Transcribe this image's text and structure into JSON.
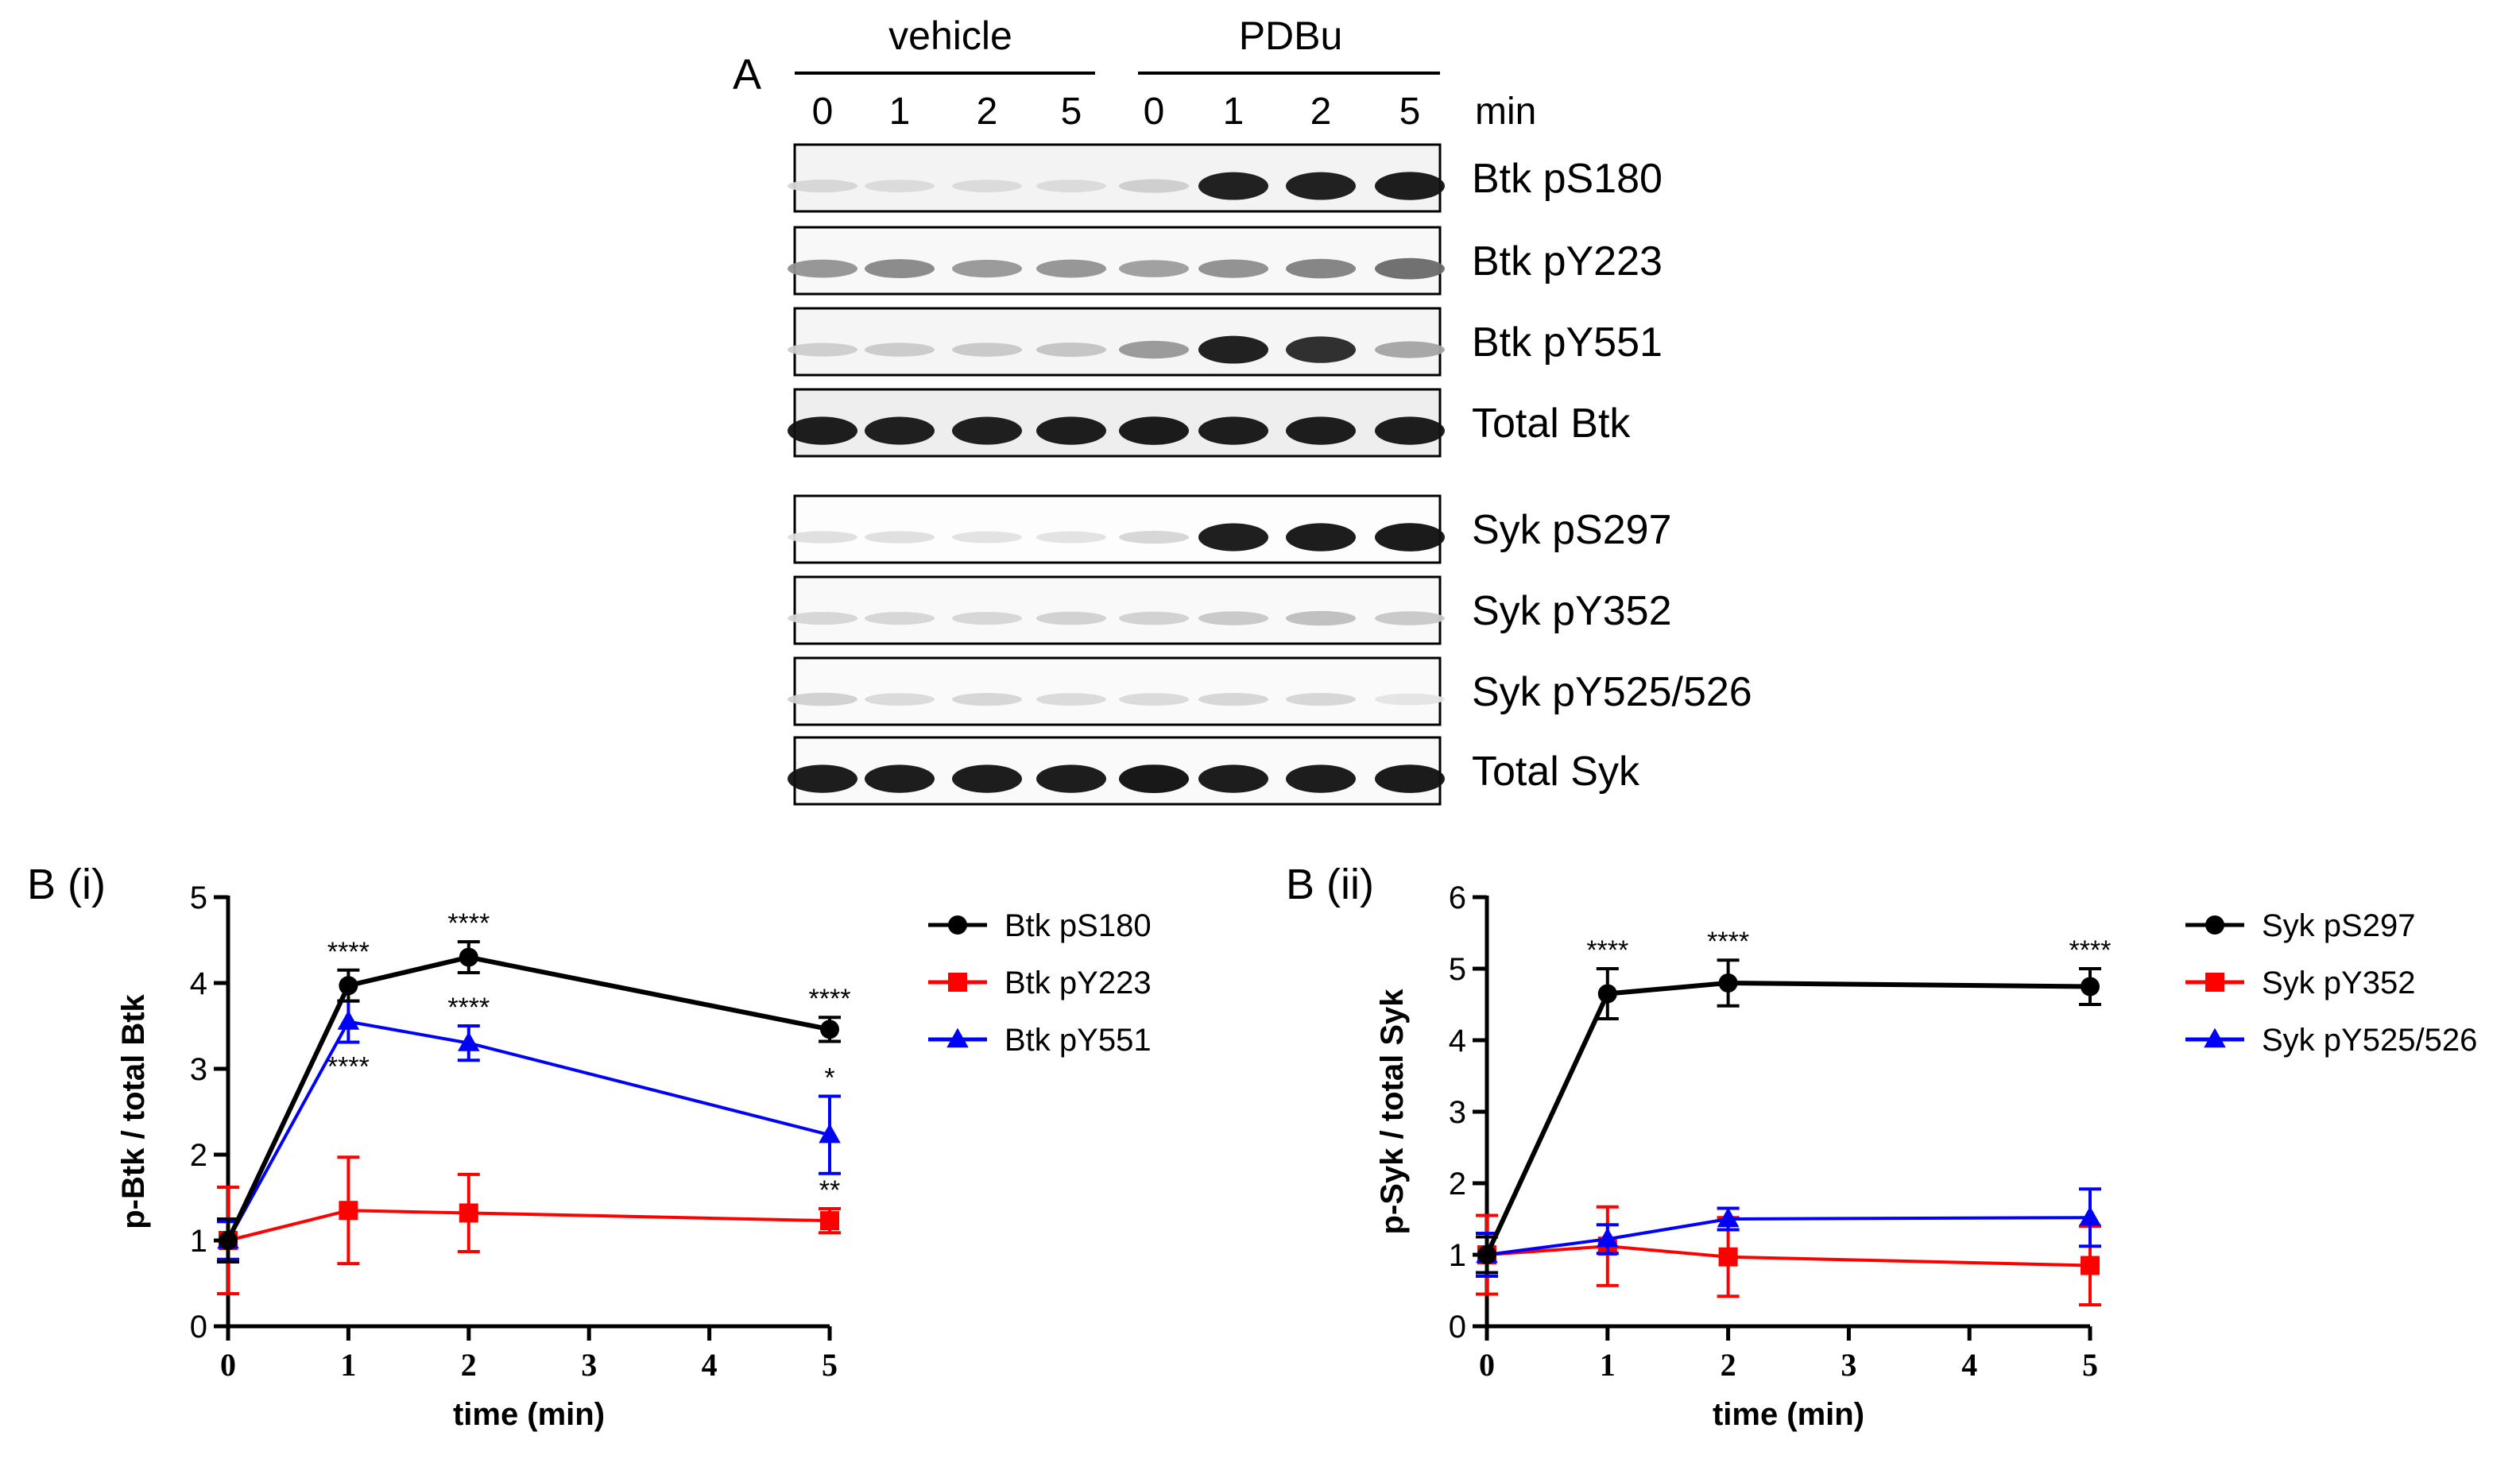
{
  "panel_a": {
    "label": "A",
    "groups": [
      {
        "name": "vehicle",
        "times": [
          "0",
          "1",
          "2",
          "5"
        ]
      },
      {
        "name": "PDBu",
        "times": [
          "0",
          "1",
          "2",
          "5"
        ]
      }
    ],
    "unit_label": "min",
    "blots": [
      {
        "label": "Btk pS180",
        "intensity": [
          0.1,
          0.08,
          0.08,
          0.08,
          0.14,
          0.95,
          0.95,
          0.97
        ],
        "background": 0.1
      },
      {
        "label": "Btk pY223",
        "intensity": [
          0.4,
          0.45,
          0.38,
          0.4,
          0.35,
          0.42,
          0.48,
          0.58
        ],
        "background": 0.06
      },
      {
        "label": "Btk pY551",
        "intensity": [
          0.14,
          0.15,
          0.16,
          0.18,
          0.38,
          0.95,
          0.88,
          0.32
        ],
        "background": 0.08
      },
      {
        "label": "Total Btk",
        "intensity": [
          0.97,
          0.96,
          0.96,
          0.97,
          0.98,
          0.97,
          0.97,
          0.97
        ],
        "background": 0.14
      },
      {
        "label": "Syk pS297",
        "intensity": [
          0.06,
          0.06,
          0.04,
          0.04,
          0.1,
          0.96,
          0.97,
          0.98
        ],
        "background": 0.02
      },
      {
        "label": "Syk pY352",
        "intensity": [
          0.1,
          0.1,
          0.1,
          0.12,
          0.12,
          0.16,
          0.2,
          0.16
        ],
        "background": 0.05
      },
      {
        "label": "Syk pY525/526",
        "intensity": [
          0.12,
          0.08,
          0.1,
          0.08,
          0.08,
          0.1,
          0.1,
          0.03
        ],
        "background": 0.04
      },
      {
        "label": "Total Syk",
        "intensity": [
          0.97,
          0.97,
          0.97,
          0.97,
          0.99,
          0.97,
          0.97,
          0.98
        ],
        "background": 0.04
      }
    ]
  },
  "chart_data": [
    {
      "panel_label": "B (i)",
      "type": "line",
      "xlabel": "time (min)",
      "ylabel": "p-Btk / total Btk",
      "xlim": [
        0,
        5
      ],
      "ylim": [
        0,
        5
      ],
      "xticks": [
        0,
        1,
        2,
        3,
        4,
        5
      ],
      "yticks": [
        0,
        1,
        2,
        3,
        4,
        5
      ],
      "legend_position": "right",
      "series": [
        {
          "name": "Btk pS180",
          "color": "#000000",
          "marker": "circle",
          "x": [
            0,
            1,
            2,
            5
          ],
          "y": [
            1.0,
            3.97,
            4.3,
            3.46
          ],
          "err": [
            0.25,
            0.18,
            0.18,
            0.14
          ],
          "sig": [
            "",
            "****",
            "****",
            "****"
          ],
          "sig_side": [
            "",
            "above",
            "above",
            "above"
          ]
        },
        {
          "name": "Btk pY223",
          "color": "#ff0000",
          "marker": "square",
          "x": [
            0,
            1,
            2,
            5
          ],
          "y": [
            1.0,
            1.35,
            1.32,
            1.23
          ],
          "err": [
            0.62,
            0.62,
            0.45,
            0.14
          ],
          "sig": [
            "",
            "",
            "",
            "**"
          ],
          "sig_side": [
            "",
            "",
            "",
            "above"
          ]
        },
        {
          "name": "Btk pY551",
          "color": "#0000ff",
          "marker": "triangle",
          "x": [
            0,
            1,
            2,
            5
          ],
          "y": [
            1.0,
            3.55,
            3.3,
            2.23
          ],
          "err": [
            0.22,
            0.24,
            0.2,
            0.45
          ],
          "sig": [
            "",
            "****",
            "****",
            "*"
          ],
          "sig_side": [
            "",
            "below",
            "above",
            "above"
          ]
        }
      ]
    },
    {
      "panel_label": "B (ii)",
      "type": "line",
      "xlabel": "time (min)",
      "ylabel": "p-Syk / total Syk",
      "xlim": [
        0,
        5
      ],
      "ylim": [
        0,
        6
      ],
      "xticks": [
        0,
        1,
        2,
        3,
        4,
        5
      ],
      "yticks": [
        0,
        1,
        2,
        3,
        4,
        5,
        6
      ],
      "legend_position": "right",
      "series": [
        {
          "name": "Syk pS297",
          "color": "#000000",
          "marker": "circle",
          "x": [
            0,
            1,
            2,
            5
          ],
          "y": [
            1.0,
            4.65,
            4.8,
            4.75
          ],
          "err": [
            0.25,
            0.35,
            0.32,
            0.25
          ],
          "sig": [
            "",
            "****",
            "****",
            "****"
          ],
          "sig_side": [
            "",
            "above",
            "above",
            "above"
          ]
        },
        {
          "name": "Syk pY352",
          "color": "#ff0000",
          "marker": "square",
          "x": [
            0,
            1,
            2,
            5
          ],
          "y": [
            1.0,
            1.12,
            0.97,
            0.85
          ],
          "err": [
            0.55,
            0.55,
            0.55,
            0.55
          ],
          "sig": [
            "",
            "",
            "",
            ""
          ],
          "sig_side": [
            "",
            "",
            "",
            ""
          ]
        },
        {
          "name": "Syk pY525/526",
          "color": "#0000ff",
          "marker": "triangle",
          "x": [
            0,
            1,
            2,
            5
          ],
          "y": [
            1.0,
            1.22,
            1.5,
            1.52
          ],
          "err": [
            0.3,
            0.2,
            0.15,
            0.4
          ],
          "sig": [
            "",
            "",
            "",
            ""
          ],
          "sig_side": [
            "",
            "",
            "",
            ""
          ]
        }
      ]
    }
  ]
}
